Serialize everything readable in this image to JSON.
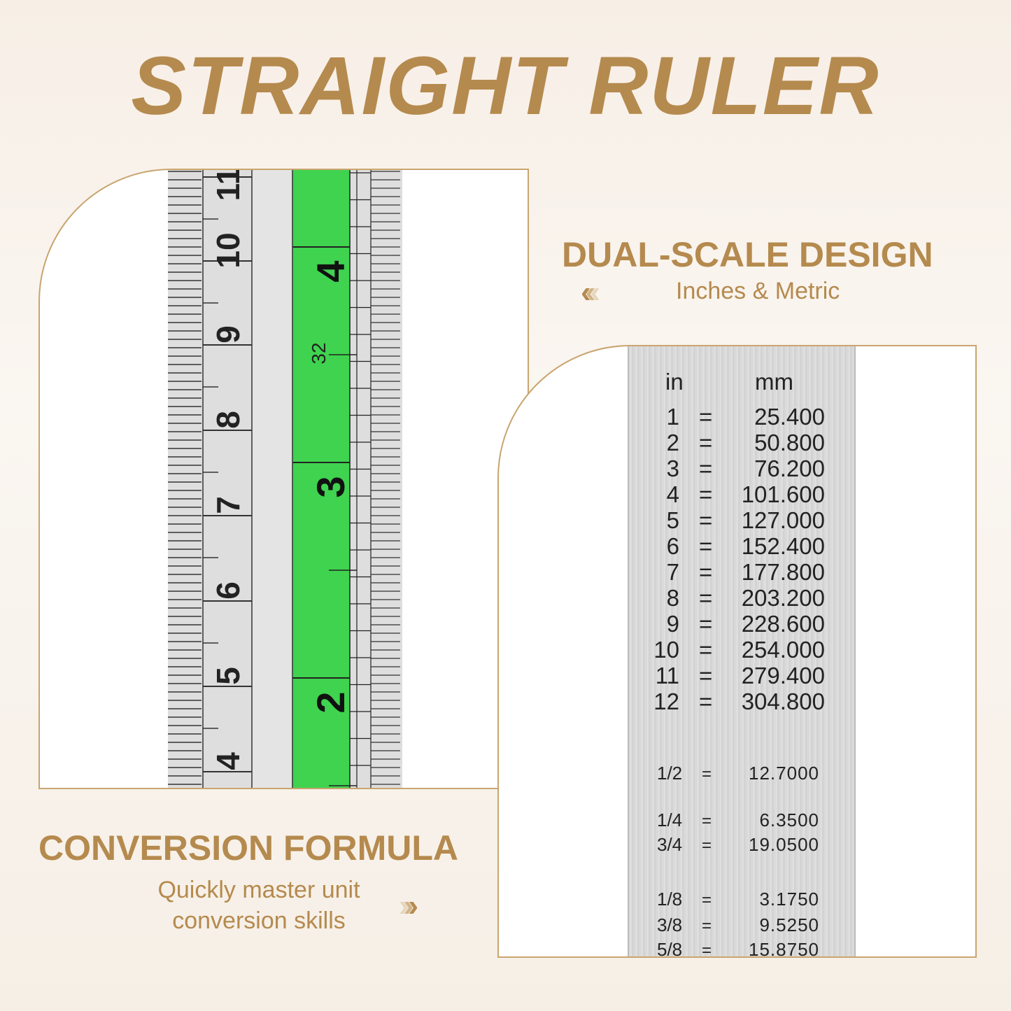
{
  "title": "STRAIGHT RULER",
  "dual": {
    "heading": "DUAL-SCALE DESIGN",
    "subtitle": "Inches & Metric",
    "chevrons": "‹‹‹"
  },
  "conversion": {
    "heading": "CONVERSION FORMULA",
    "subtitle_line1": "Quickly master unit",
    "subtitle_line2": "conversion skills",
    "chevrons": "›››"
  },
  "colors": {
    "gold": "#b58a4e",
    "green": "#3fd34f",
    "silver": "#d9d9d9"
  },
  "ruler": {
    "cm_labels": [
      "11",
      "10",
      "9",
      "8",
      "7",
      "6",
      "5",
      "4"
    ],
    "inch_labels": [
      "4",
      "3",
      "2"
    ],
    "sixteenth_label": "32"
  },
  "table": {
    "header_in": "in",
    "header_mm": "mm",
    "eq": "=",
    "rows": [
      [
        "1",
        "25.400"
      ],
      [
        "2",
        "50.800"
      ],
      [
        "3",
        "76.200"
      ],
      [
        "4",
        "101.600"
      ],
      [
        "5",
        "127.000"
      ],
      [
        "6",
        "152.400"
      ],
      [
        "7",
        "177.800"
      ],
      [
        "8",
        "203.200"
      ],
      [
        "9",
        "228.600"
      ],
      [
        "10",
        "254.000"
      ],
      [
        "11",
        "279.400"
      ],
      [
        "12",
        "304.800"
      ]
    ],
    "fractions": [
      [
        "1/2",
        "12.7000"
      ],
      [
        "1/4",
        "6.3500"
      ],
      [
        "3/4",
        "19.0500"
      ],
      [
        "1/8",
        "3.1750"
      ],
      [
        "3/8",
        "9.5250"
      ],
      [
        "5/8",
        "15.8750"
      ]
    ]
  }
}
